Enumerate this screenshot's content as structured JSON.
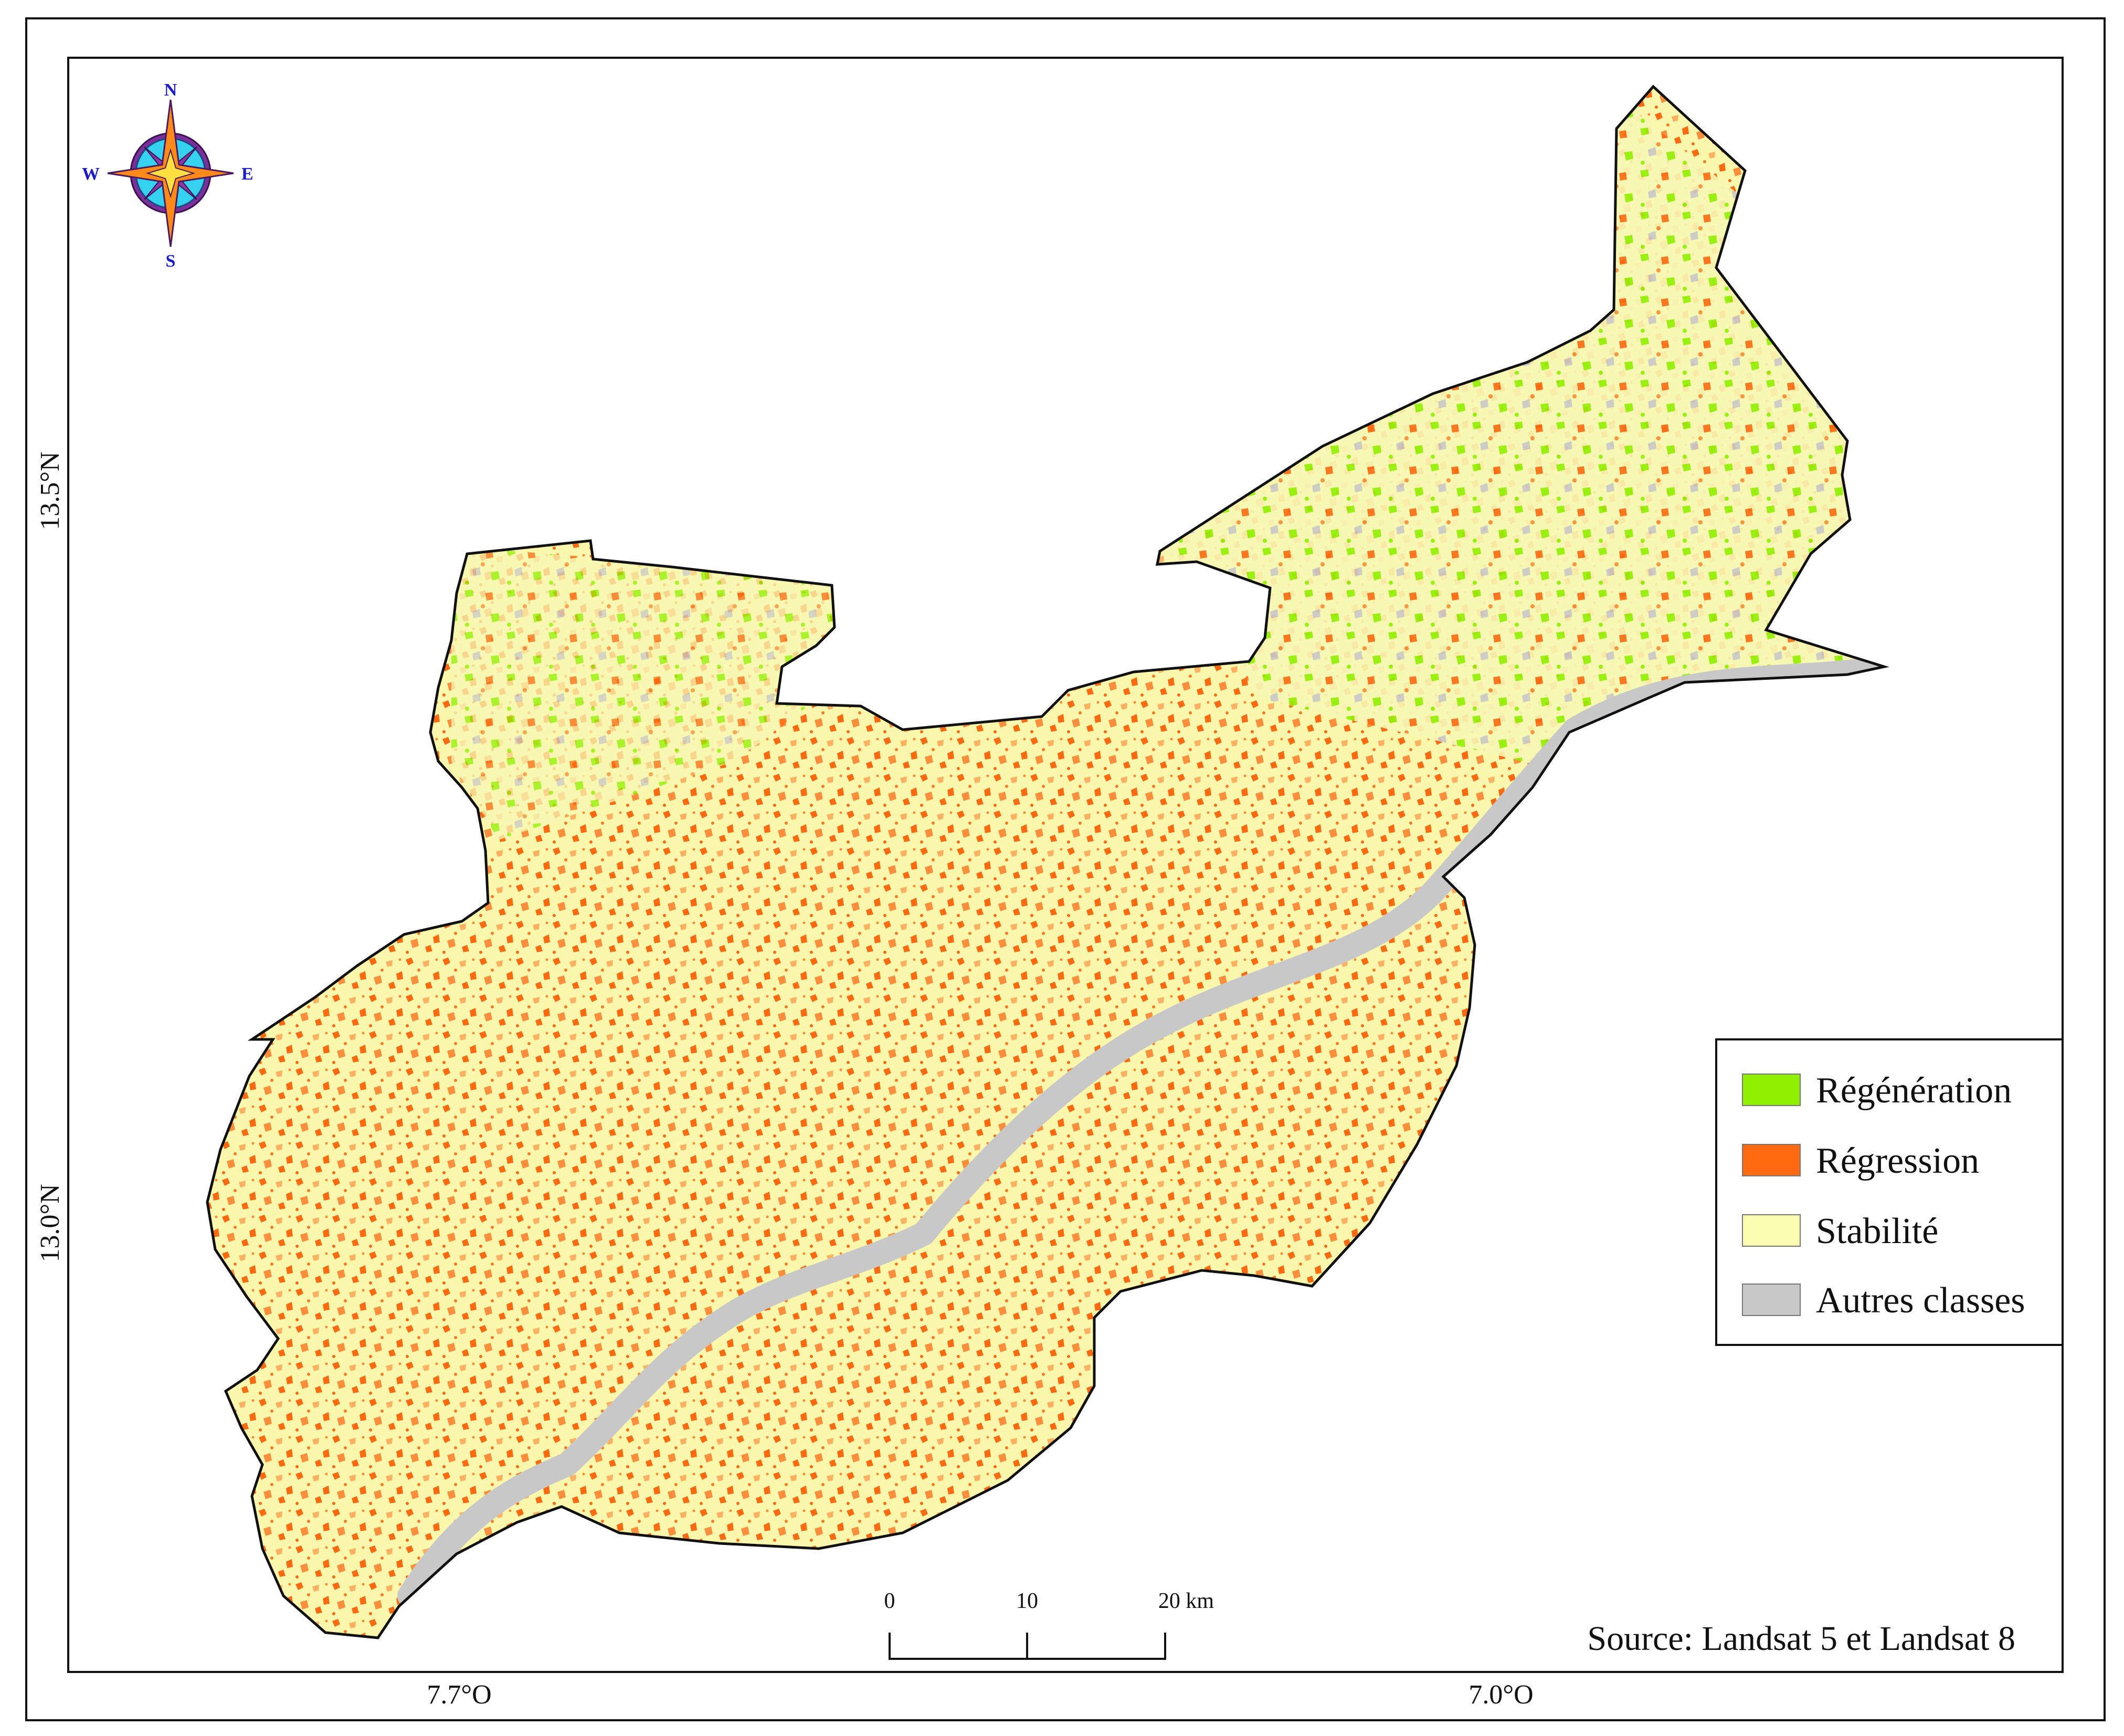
{
  "legend": {
    "items": [
      {
        "label": "Régénération",
        "color": "#8ff000"
      },
      {
        "label": "Régression",
        "color": "#ff6a10"
      },
      {
        "label": "Stabilité",
        "color": "#fafcb0"
      },
      {
        "label": "Autres classes",
        "color": "#c8c8c8"
      }
    ]
  },
  "coordinates": {
    "lat_top": "13.5°N",
    "lat_bottom": "13.0°N",
    "lon_left": "7.7°O",
    "lon_right": "7.0°O"
  },
  "scale_bar": {
    "ticks": [
      "0",
      "10",
      "20 km"
    ]
  },
  "source": "Source: Landsat 5 et Landsat 8",
  "compass": {
    "n": "N",
    "s": "S",
    "e": "E",
    "w": "W"
  },
  "colors": {
    "regeneration": "#8ff000",
    "regression": "#ff6a10",
    "stability": "#fafcb0",
    "other": "#c8c8c8",
    "border": "#111111"
  }
}
